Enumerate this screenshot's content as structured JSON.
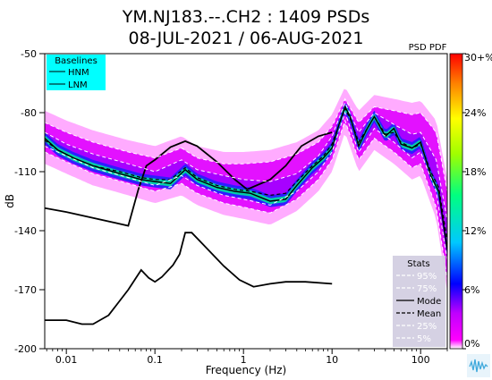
{
  "title_line1": "YM.NJ183.--.CH2 : 1409 PSDs",
  "title_line2": "08-JUL-2021 / 06-AUG-2021",
  "psd_pdf_label": "PSD PDF",
  "baselines": {
    "title": "Baselines",
    "items": [
      "HNM",
      "LNM"
    ]
  },
  "stats": {
    "title": "Stats",
    "items": [
      {
        "label": "95%",
        "style": "dash-white"
      },
      {
        "label": "75%",
        "style": "dash-white"
      },
      {
        "label": "Mode",
        "style": "solid-black"
      },
      {
        "label": "Mean",
        "style": "dash-black"
      },
      {
        "label": "25%",
        "style": "dash-white"
      },
      {
        "label": "5%",
        "style": "dash-white"
      }
    ]
  },
  "colors": {
    "pdf_low": "#ff00ff",
    "pdf_mid": "#0000ff",
    "pdf_high": "#ff0000",
    "baselines_box": "#00ffff",
    "stats_box": "#d0cce0"
  },
  "chart_data": {
    "type": "heatmap",
    "title": "YM.NJ183.--.CH2 : 1409 PSDs",
    "subtitle": "08-JUL-2021 / 06-AUG-2021",
    "xlabel": "Frequency (Hz)",
    "ylabel": "dB",
    "xscale": "log",
    "xlim": [
      0.0057,
      200
    ],
    "ylim": [
      -200,
      -50
    ],
    "xticks": [
      {
        "v": 0.01,
        "label": "0.01"
      },
      {
        "v": 0.1,
        "label": "0.1"
      },
      {
        "v": 1,
        "label": "1"
      },
      {
        "v": 10,
        "label": "10"
      },
      {
        "v": 100,
        "label": "100"
      }
    ],
    "yticks": [
      -50,
      -80,
      -110,
      -140,
      -170,
      -200
    ],
    "colorbar": {
      "label": "PSD PDF",
      "ticks": [
        "0%",
        "6%",
        "12%",
        "18%",
        "24%",
        "30+%"
      ]
    },
    "series": [
      {
        "name": "HNM",
        "points": [
          [
            0.0057,
            -128.5
          ],
          [
            0.01,
            -130.5
          ],
          [
            0.05,
            -137.5
          ],
          [
            0.065,
            -119
          ],
          [
            0.08,
            -107
          ],
          [
            0.1,
            -104
          ],
          [
            0.15,
            -97.5
          ],
          [
            0.22,
            -94.5
          ],
          [
            0.3,
            -97
          ],
          [
            0.5,
            -105
          ],
          [
            0.8,
            -114
          ],
          [
            1.1,
            -119
          ],
          [
            2,
            -114
          ],
          [
            3,
            -107
          ],
          [
            4.5,
            -97
          ],
          [
            7,
            -92
          ],
          [
            10,
            -90
          ]
        ]
      },
      {
        "name": "LNM",
        "points": [
          [
            0.0057,
            -185.5
          ],
          [
            0.01,
            -185.5
          ],
          [
            0.015,
            -187.5
          ],
          [
            0.02,
            -187.5
          ],
          [
            0.03,
            -183
          ],
          [
            0.05,
            -170
          ],
          [
            0.07,
            -160
          ],
          [
            0.085,
            -164
          ],
          [
            0.1,
            -166
          ],
          [
            0.12,
            -163.5
          ],
          [
            0.16,
            -157.5
          ],
          [
            0.19,
            -152
          ],
          [
            0.22,
            -141
          ],
          [
            0.26,
            -141
          ],
          [
            0.35,
            -147
          ],
          [
            0.6,
            -158
          ],
          [
            0.9,
            -165
          ],
          [
            1.3,
            -168.5
          ],
          [
            2,
            -167
          ],
          [
            3,
            -166
          ],
          [
            5,
            -166
          ],
          [
            10,
            -167
          ]
        ]
      },
      {
        "name": "Mode",
        "points": [
          [
            0.0057,
            -93
          ],
          [
            0.008,
            -99
          ],
          [
            0.012,
            -103
          ],
          [
            0.02,
            -107
          ],
          [
            0.04,
            -111
          ],
          [
            0.07,
            -114
          ],
          [
            0.1,
            -115
          ],
          [
            0.15,
            -116
          ],
          [
            0.22,
            -109
          ],
          [
            0.3,
            -114
          ],
          [
            0.5,
            -118
          ],
          [
            0.8,
            -120
          ],
          [
            1.2,
            -121
          ],
          [
            2,
            -125
          ],
          [
            3,
            -124
          ],
          [
            4,
            -117
          ],
          [
            6,
            -108
          ],
          [
            8,
            -103
          ],
          [
            10,
            -98
          ],
          [
            12,
            -86
          ],
          [
            14,
            -77
          ],
          [
            16,
            -82
          ],
          [
            20,
            -97
          ],
          [
            25,
            -88
          ],
          [
            30,
            -82
          ],
          [
            40,
            -92
          ],
          [
            50,
            -88
          ],
          [
            60,
            -96
          ],
          [
            80,
            -98
          ],
          [
            100,
            -95
          ],
          [
            130,
            -112
          ],
          [
            160,
            -120
          ],
          [
            200,
            -150
          ]
        ]
      },
      {
        "name": "Mean",
        "points": [
          [
            0.0057,
            -94
          ],
          [
            0.008,
            -99
          ],
          [
            0.012,
            -103
          ],
          [
            0.02,
            -107
          ],
          [
            0.04,
            -110
          ],
          [
            0.07,
            -113
          ],
          [
            0.1,
            -114
          ],
          [
            0.15,
            -114
          ],
          [
            0.22,
            -108
          ],
          [
            0.3,
            -113
          ],
          [
            0.5,
            -117
          ],
          [
            0.8,
            -119
          ],
          [
            1.2,
            -120
          ],
          [
            2,
            -122
          ],
          [
            3,
            -121
          ],
          [
            4,
            -115
          ],
          [
            6,
            -107
          ],
          [
            8,
            -102
          ],
          [
            10,
            -96
          ],
          [
            12,
            -86
          ],
          [
            14,
            -78
          ],
          [
            16,
            -83
          ],
          [
            20,
            -95
          ],
          [
            25,
            -88
          ],
          [
            30,
            -82
          ],
          [
            40,
            -91
          ],
          [
            50,
            -90
          ],
          [
            60,
            -95
          ],
          [
            80,
            -98
          ],
          [
            100,
            -96
          ],
          [
            130,
            -110
          ],
          [
            160,
            -118
          ],
          [
            200,
            -145
          ]
        ]
      },
      {
        "name": "95%",
        "points": [
          [
            0.0057,
            -85
          ],
          [
            0.01,
            -90
          ],
          [
            0.02,
            -95
          ],
          [
            0.05,
            -100
          ],
          [
            0.1,
            -103
          ],
          [
            0.2,
            -98
          ],
          [
            0.3,
            -103
          ],
          [
            0.6,
            -106
          ],
          [
            1,
            -106
          ],
          [
            2,
            -105
          ],
          [
            4,
            -101
          ],
          [
            7,
            -95
          ],
          [
            10,
            -87
          ],
          [
            14,
            -73
          ],
          [
            20,
            -85
          ],
          [
            30,
            -77
          ],
          [
            50,
            -79
          ],
          [
            80,
            -81
          ],
          [
            100,
            -80
          ],
          [
            150,
            -90
          ],
          [
            200,
            -120
          ]
        ]
      },
      {
        "name": "75%",
        "points": [
          [
            0.0057,
            -90
          ],
          [
            0.01,
            -96
          ],
          [
            0.02,
            -101
          ],
          [
            0.05,
            -106
          ],
          [
            0.1,
            -110
          ],
          [
            0.2,
            -104
          ],
          [
            0.3,
            -109
          ],
          [
            0.6,
            -112
          ],
          [
            1,
            -114
          ],
          [
            2,
            -115
          ],
          [
            4,
            -111
          ],
          [
            7,
            -102
          ],
          [
            10,
            -92
          ],
          [
            14,
            -75
          ],
          [
            20,
            -90
          ],
          [
            30,
            -80
          ],
          [
            50,
            -86
          ],
          [
            80,
            -91
          ],
          [
            100,
            -90
          ],
          [
            150,
            -104
          ],
          [
            200,
            -135
          ]
        ]
      },
      {
        "name": "25%",
        "points": [
          [
            0.0057,
            -97
          ],
          [
            0.01,
            -102
          ],
          [
            0.02,
            -108
          ],
          [
            0.05,
            -113
          ],
          [
            0.1,
            -117
          ],
          [
            0.2,
            -112
          ],
          [
            0.3,
            -117
          ],
          [
            0.6,
            -122
          ],
          [
            1,
            -124
          ],
          [
            2,
            -127
          ],
          [
            4,
            -120
          ],
          [
            7,
            -110
          ],
          [
            10,
            -100
          ],
          [
            14,
            -80
          ],
          [
            20,
            -100
          ],
          [
            30,
            -88
          ],
          [
            50,
            -95
          ],
          [
            80,
            -103
          ],
          [
            100,
            -100
          ],
          [
            150,
            -120
          ],
          [
            200,
            -155
          ]
        ]
      },
      {
        "name": "5%",
        "points": [
          [
            0.0057,
            -100
          ],
          [
            0.01,
            -105
          ],
          [
            0.02,
            -111
          ],
          [
            0.05,
            -116
          ],
          [
            0.1,
            -120
          ],
          [
            0.2,
            -116
          ],
          [
            0.3,
            -121
          ],
          [
            0.6,
            -126
          ],
          [
            1,
            -128
          ],
          [
            2,
            -131
          ],
          [
            4,
            -124
          ],
          [
            7,
            -114
          ],
          [
            10,
            -104
          ],
          [
            14,
            -84
          ],
          [
            20,
            -104
          ],
          [
            30,
            -93
          ],
          [
            50,
            -100
          ],
          [
            80,
            -108
          ],
          [
            100,
            -106
          ],
          [
            150,
            -128
          ],
          [
            200,
            -165
          ]
        ]
      }
    ]
  }
}
